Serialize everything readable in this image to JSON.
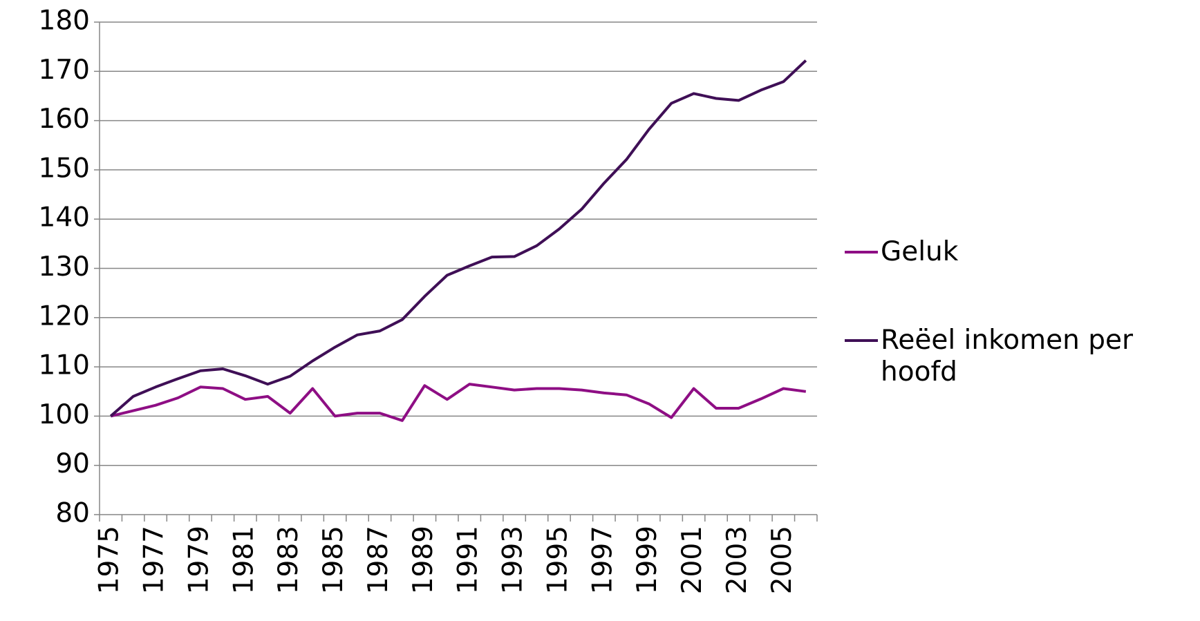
{
  "chart_data": {
    "type": "line",
    "categories": [
      "1975",
      null,
      "1977",
      null,
      "1979",
      null,
      "1981",
      null,
      "1983",
      null,
      "1985",
      null,
      "1987",
      null,
      "1989",
      null,
      "1991",
      null,
      "1993",
      null,
      "1995",
      null,
      "1997",
      null,
      "1999",
      null,
      "2001",
      null,
      "2003",
      null,
      "2005",
      null
    ],
    "series": [
      {
        "name": "Geluk",
        "color": "#8e0e84",
        "values": [
          100,
          101.1,
          102.2,
          103.7,
          105.9,
          105.6,
          103.4,
          104,
          100.6,
          105.6,
          100,
          100.6,
          100.6,
          99.1,
          106.2,
          103.4,
          106.5,
          105.9,
          105.3,
          105.6,
          105.6,
          105.3,
          104.7,
          104.3,
          102.5,
          99.7,
          105.6,
          101.6,
          101.6,
          103.5,
          105.6,
          105
        ]
      },
      {
        "name": "Reëel inkomen per hoofd",
        "color": "#3f0f56",
        "values": [
          100,
          104,
          105.9,
          107.6,
          109.2,
          109.6,
          108.2,
          106.5,
          108.1,
          111.2,
          114,
          116.5,
          117.3,
          119.6,
          124.3,
          128.6,
          130.5,
          132.3,
          132.4,
          134.6,
          138,
          142,
          147.3,
          152.1,
          158.2,
          163.5,
          165.5,
          164.5,
          164.1,
          166.2,
          167.9,
          172.2
        ]
      }
    ],
    "ylim": [
      80,
      180
    ],
    "yticks": [
      80,
      90,
      100,
      110,
      120,
      130,
      140,
      150,
      160,
      170,
      180
    ],
    "grid": true,
    "legend": "right"
  }
}
